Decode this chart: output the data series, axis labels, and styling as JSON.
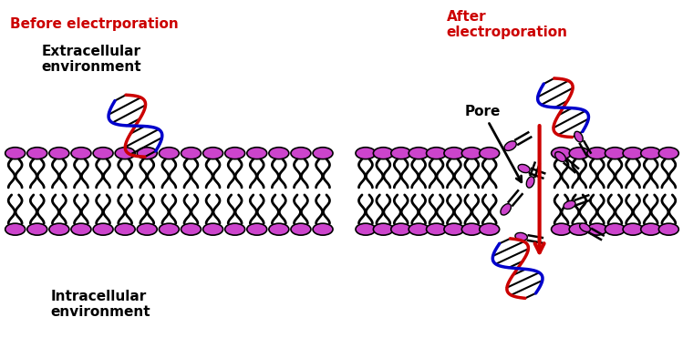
{
  "bg_color": "#ffffff",
  "membrane_color": "#cc44cc",
  "membrane_outline": "#000000",
  "tail_color": "#000000",
  "dna_red": "#cc0000",
  "dna_blue": "#0000cc",
  "dna_black": "#000000",
  "arrow_red": "#cc0000",
  "text_before": "Before electrporation",
  "text_after": "After\nelectroporation",
  "text_extra": "Extracellular\nenvironment",
  "text_intra": "Intracellular\nenvironment",
  "text_pore": "Pore",
  "color_red": "#cc0000",
  "color_black": "#000000",
  "figsize": [
    7.49,
    3.82
  ],
  "dpi": 100
}
